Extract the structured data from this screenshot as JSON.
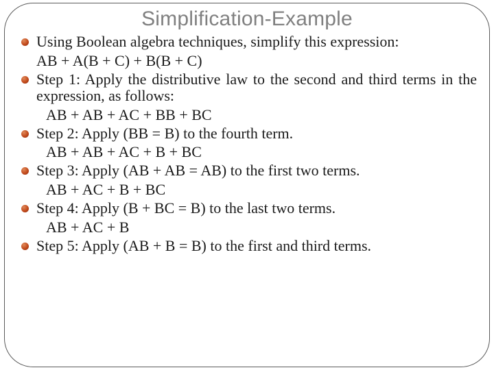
{
  "slide": {
    "title": "Simplification-Example",
    "title_color": "#808080",
    "title_fontsize": 30,
    "bullet_color_gradient": [
      "#e08a5a",
      "#c24a1c",
      "#8a2a0e"
    ],
    "body_fontsize": 22,
    "body_color": "#1a1a1a",
    "frame_border_color": "#5a5a5a",
    "frame_border_radius": 42,
    "background_color": "#ffffff",
    "items": [
      {
        "text": "Using Boolean algebra techniques, simplify this expression:",
        "expr": "AB + A(B + C) + B(B + C)",
        "expr_indent": "tight"
      },
      {
        "text": "Step 1: Apply the distributive law to the second and third terms in the expression, as follows:",
        "expr": "AB + AB + AC + BB + BC",
        "expr_indent": "normal"
      },
      {
        "text": "Step 2: Apply (BB = B) to the fourth term.",
        "expr": "AB + AB + AC + B + BC",
        "expr_indent": "normal"
      },
      {
        "text": "Step 3: Apply (AB + AB = AB) to the first two terms.",
        "expr": "AB + AC + B + BC",
        "expr_indent": "normal"
      },
      {
        "text": "Step 4: Apply (B + BC = B) to the last two terms.",
        "expr": "AB + AC + B",
        "expr_indent": "normal"
      },
      {
        "text": "Step 5: Apply (AB + B = B) to the first and third terms.",
        "expr": "",
        "expr_indent": "normal"
      }
    ]
  }
}
